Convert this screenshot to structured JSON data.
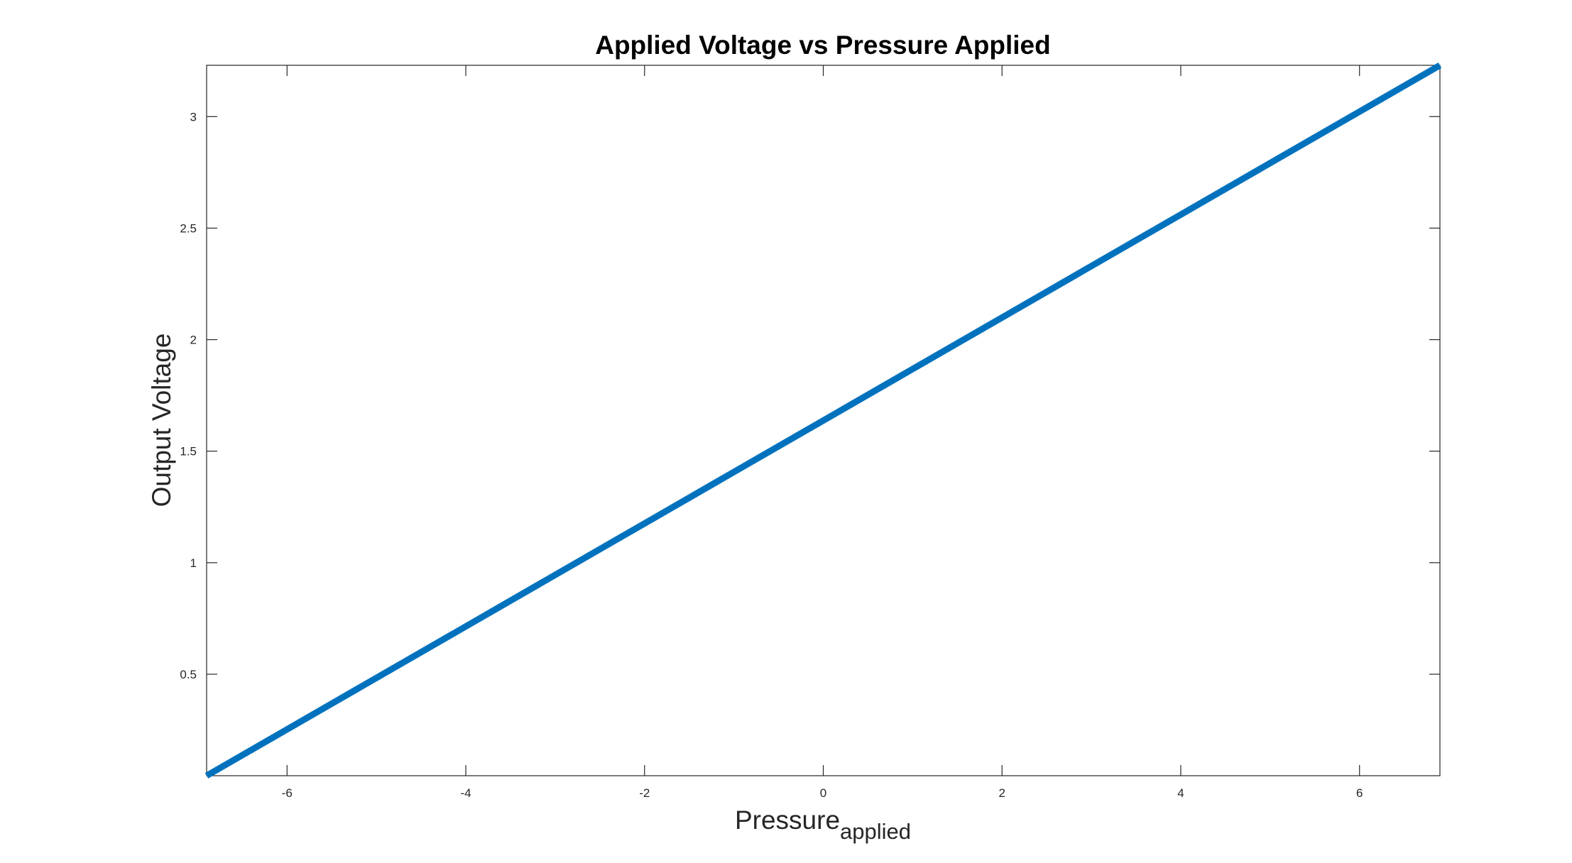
{
  "chart_data": {
    "type": "line",
    "title": "Applied Voltage vs Pressure Applied",
    "xlabel": {
      "main": "Pressure",
      "subscript": "applied"
    },
    "ylabel": "Output Voltage",
    "xlim": [
      -6.9,
      6.9
    ],
    "ylim": [
      0.045,
      3.23
    ],
    "xticks": [
      -6,
      -4,
      -2,
      0,
      2,
      4,
      6
    ],
    "xtick_labels": [
      "-6",
      "-4",
      "-2",
      "0",
      "2",
      "4",
      "6"
    ],
    "yticks": [
      0.5,
      1,
      1.5,
      2,
      2.5,
      3
    ],
    "ytick_labels": [
      "0.5",
      "1",
      "1.5",
      "2",
      "2.5",
      "3"
    ],
    "grid": false,
    "series": [
      {
        "color": "#0072BD",
        "x": [
          -6.9,
          6.9
        ],
        "y": [
          0.045,
          3.23
        ]
      }
    ]
  }
}
